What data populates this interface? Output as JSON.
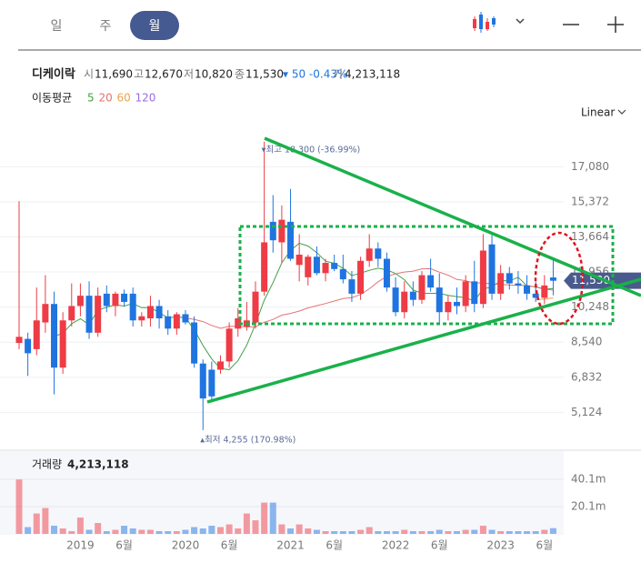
{
  "tabs": [
    "일",
    "주",
    "월"
  ],
  "selected_tab": 2,
  "chart_data": {
    "type": "candlestick",
    "title": "디케이락",
    "quote": [
      {
        "label": "시",
        "value": "11,690"
      },
      {
        "label": "고",
        "value": "12,670"
      },
      {
        "label": "저",
        "value": "10,820"
      },
      {
        "label": "종",
        "value": "11,530"
      }
    ],
    "change": "▾ 50 -0.43%",
    "volume_quote": {
      "label": "거",
      "value": "4,213,118"
    },
    "ma_label": "이동평균",
    "moving_averages": [
      {
        "period": 5,
        "color": "#43a047"
      },
      {
        "period": 20,
        "color": "#e57373"
      },
      {
        "period": 60,
        "color": "#f0a24a"
      },
      {
        "period": 120,
        "color": "#9b6be6"
      }
    ],
    "scale": "Linear",
    "high_annotation": "▾최고 18,300 (-36.99%)",
    "low_annotation": "▴최저 4,255 (170.98%)",
    "last_price_label": "11,530",
    "up_color": "#ee3b45",
    "down_color": "#1f74e0",
    "categories": [
      null,
      null,
      null,
      null,
      null,
      null,
      null,
      "2019",
      null,
      null,
      null,
      null,
      "6월",
      null,
      null,
      null,
      null,
      null,
      null,
      "2020",
      null,
      null,
      null,
      null,
      "6월",
      null,
      null,
      null,
      null,
      null,
      null,
      "2021",
      null,
      null,
      null,
      null,
      "6월",
      null,
      null,
      null,
      null,
      null,
      null,
      "2022",
      null,
      null,
      null,
      null,
      "6월",
      null,
      null,
      null,
      null,
      null,
      null,
      "2023",
      null,
      null,
      null,
      null,
      "6월",
      null
    ],
    "open": [
      8500,
      8700,
      8200,
      9500,
      10400,
      7300,
      9600,
      10300,
      10800,
      9000,
      10900,
      10300,
      10900,
      10900,
      9600,
      9700,
      10300,
      9800,
      9200,
      9900,
      9500,
      7500,
      7200,
      7200,
      7600,
      9200,
      9300,
      9500,
      11000,
      14400,
      13400,
      14400,
      12300,
      11700,
      12700,
      11900,
      12400,
      12100,
      11600,
      10900,
      12500,
      13100,
      12600,
      11200,
      10000,
      11000,
      10600,
      11800,
      11200,
      10000,
      10500,
      10300,
      11500,
      10400,
      13300,
      10900,
      11900,
      11400,
      11300,
      10900,
      10700,
      11690
    ],
    "high": [
      15400,
      9000,
      11200,
      11800,
      11000,
      10000,
      11400,
      11400,
      11500,
      11200,
      11300,
      11000,
      11100,
      11200,
      10000,
      10800,
      10600,
      10100,
      10000,
      10100,
      9800,
      7700,
      7600,
      7900,
      9500,
      10200,
      10500,
      11500,
      18300,
      15700,
      15200,
      16000,
      13800,
      12800,
      13200,
      12600,
      12800,
      12800,
      12000,
      12700,
      13800,
      13400,
      12900,
      11700,
      11500,
      11500,
      12000,
      12600,
      11900,
      10800,
      11200,
      11800,
      12500,
      13800,
      13900,
      12300,
      12200,
      12000,
      11800,
      11500,
      11800,
      12670
    ],
    "low": [
      8200,
      6900,
      7900,
      9000,
      6000,
      7000,
      9300,
      9800,
      8700,
      8800,
      10000,
      9800,
      10300,
      9300,
      9300,
      9300,
      9200,
      8900,
      8900,
      9400,
      7300,
      4255,
      5600,
      7000,
      7300,
      8800,
      9100,
      9200,
      10800,
      12900,
      12400,
      12500,
      11500,
      11300,
      11800,
      11500,
      12000,
      11400,
      10500,
      10600,
      12200,
      12200,
      11000,
      9800,
      9700,
      10300,
      10400,
      11000,
      9400,
      9600,
      9900,
      10000,
      10000,
      10200,
      10600,
      10600,
      11100,
      10900,
      10600,
      10500,
      10400,
      10820
    ],
    "close": [
      8800,
      8000,
      9600,
      10400,
      7300,
      9600,
      10300,
      10800,
      9000,
      10800,
      10300,
      10900,
      10500,
      9600,
      9800,
      10300,
      9700,
      9200,
      9900,
      9500,
      7500,
      5800,
      5900,
      7600,
      9200,
      9700,
      9600,
      11000,
      13400,
      13500,
      14500,
      12600,
      12800,
      12700,
      11900,
      12400,
      12100,
      11600,
      10900,
      12500,
      13100,
      12600,
      11200,
      10000,
      11000,
      10600,
      11800,
      11200,
      10000,
      10500,
      10300,
      11500,
      10400,
      13000,
      10900,
      11900,
      11400,
      11300,
      10900,
      10700,
      11300,
      11530
    ],
    "volume": [
      40000000,
      5000000,
      15000000,
      19000000,
      6000000,
      4000000,
      2000000,
      12000000,
      3000000,
      8000000,
      2000000,
      3000000,
      6000000,
      4000000,
      3000000,
      3000000,
      2000000,
      2000000,
      2000000,
      3000000,
      5000000,
      4000000,
      6000000,
      5000000,
      7000000,
      4000000,
      15000000,
      10000000,
      23000000,
      23000000,
      7000000,
      4000000,
      7000000,
      4000000,
      3000000,
      2000000,
      2000000,
      2000000,
      2000000,
      3000000,
      5000000,
      2000000,
      2000000,
      2000000,
      3000000,
      2000000,
      2000000,
      2000000,
      3000000,
      2000000,
      2000000,
      3000000,
      3000000,
      6000000,
      3000000,
      2000000,
      2000000,
      2000000,
      2000000,
      2000000,
      3000000,
      4213118
    ],
    "ylim": [
      3500,
      19000
    ],
    "yticks": [
      {
        "value": 5124,
        "label": "5,124"
      },
      {
        "value": 6832,
        "label": "6,832"
      },
      {
        "value": 8540,
        "label": "8,540"
      },
      {
        "value": 10248,
        "label": "10,248"
      },
      {
        "value": 11956,
        "label": "11,956"
      },
      {
        "value": 13664,
        "label": "13,664"
      },
      {
        "value": 15372,
        "label": "15,372"
      },
      {
        "value": 17080,
        "label": "17,080"
      }
    ],
    "volume_label": "거래량",
    "volume_value": "4,213,118",
    "volume_ylim": [
      0,
      44800000
    ],
    "volume_yticks": [
      {
        "value": 20100000,
        "label": "20.1m"
      },
      {
        "value": 40100000,
        "label": "40.1m"
      }
    ]
  }
}
